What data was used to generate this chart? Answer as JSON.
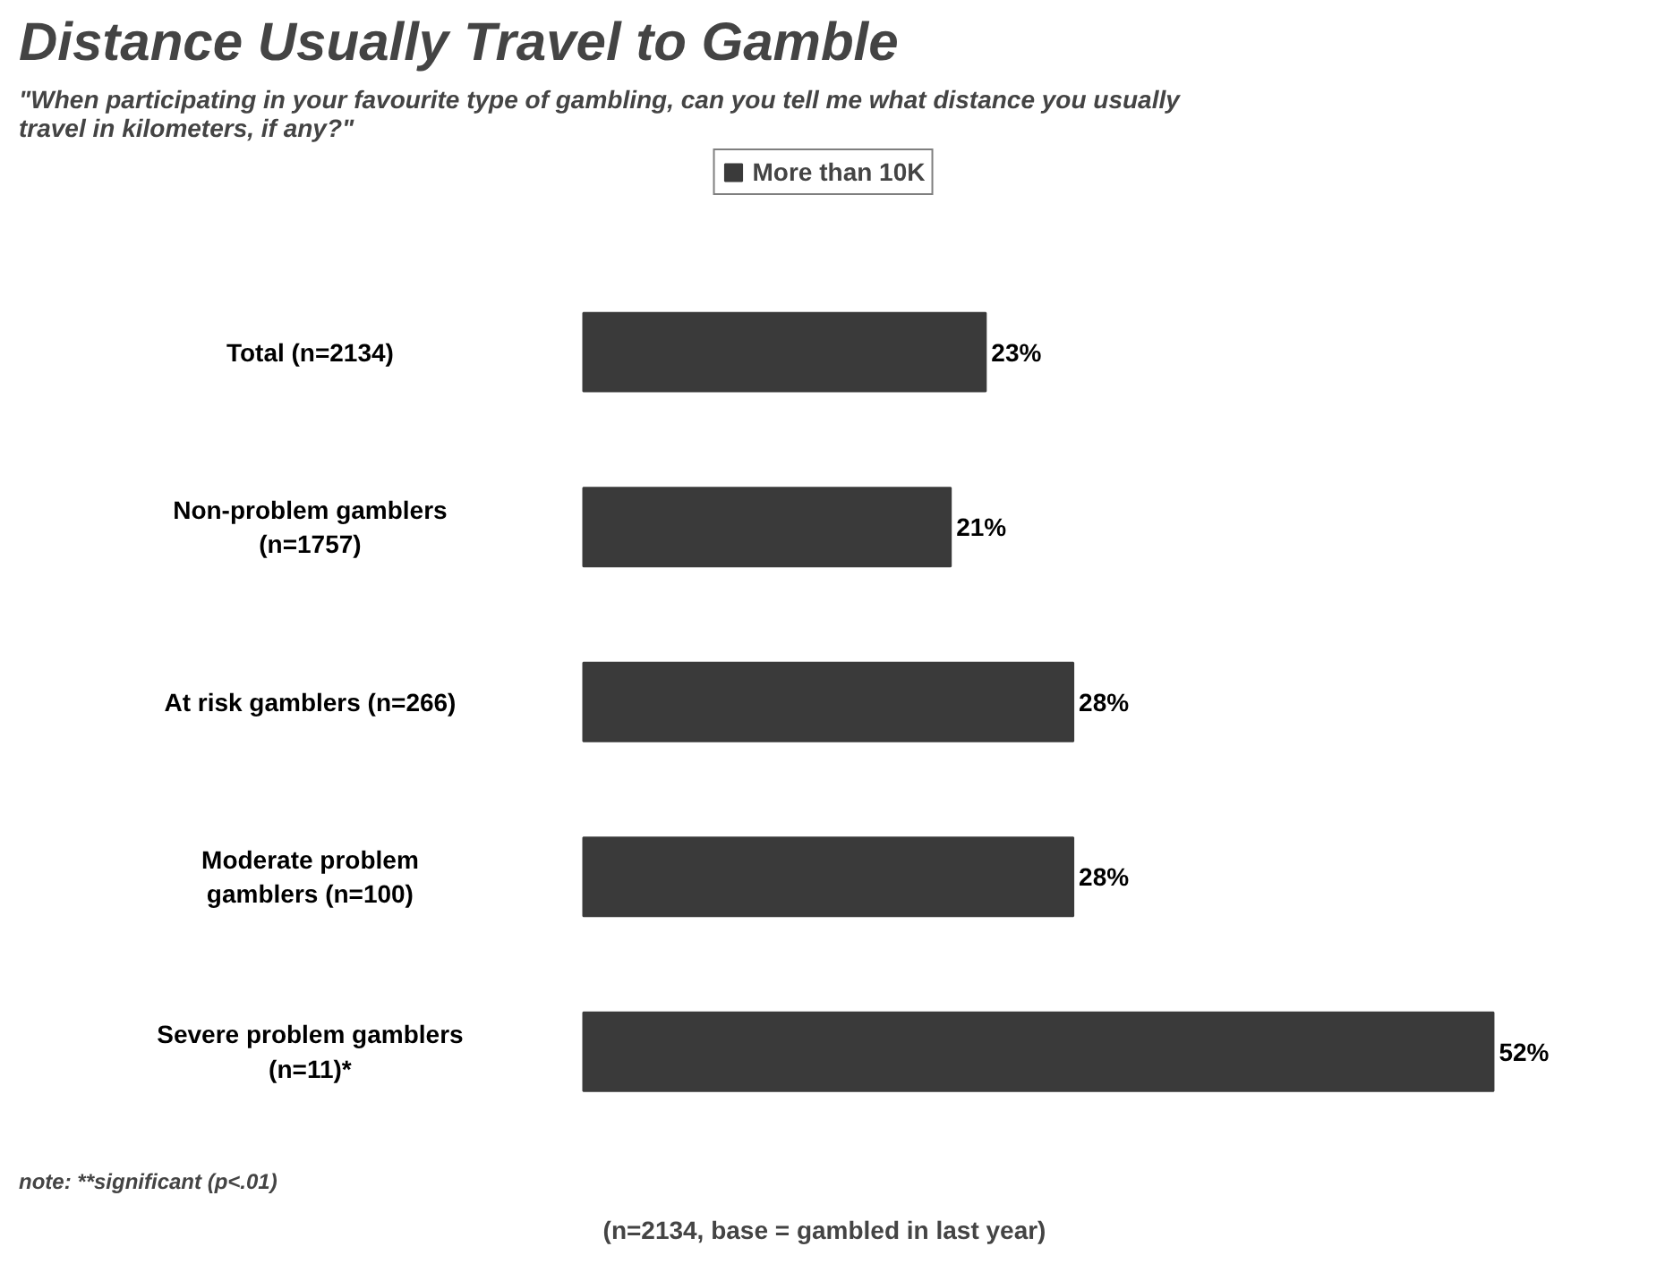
{
  "chart_data": {
    "type": "bar",
    "orientation": "horizontal",
    "title": "Distance Usually Travel to Gamble",
    "subtitle": "\"When participating in your favourite type of gambling, can you tell me what distance you usually travel in kilometers, if any?\"",
    "categories": [
      "Total (n=2134)",
      "Non-problem gamblers (n=1757)",
      "At risk gamblers (n=266)",
      "Moderate problem gamblers (n=100)",
      "Severe problem gamblers (n=11)*"
    ],
    "series": [
      {
        "name": "More than 10K",
        "color": "#3a3a3a",
        "values": [
          23,
          21,
          28,
          28,
          52
        ],
        "value_labels": [
          "23%",
          "21%",
          "28%",
          "28%",
          "52%"
        ]
      }
    ],
    "legend": "top",
    "annotations": [
      "(n=2134, base = gambled in last year)",
      "note: **significant (p<.01)"
    ]
  }
}
